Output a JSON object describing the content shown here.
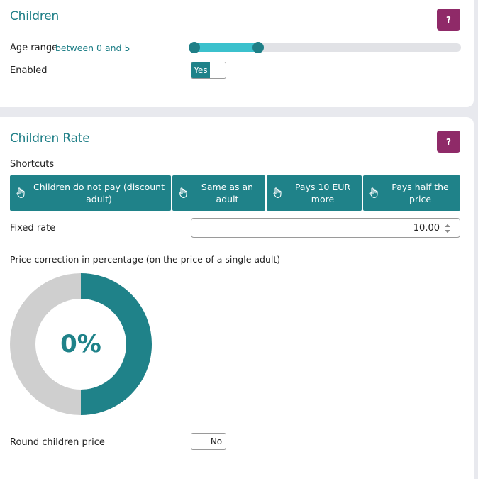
{
  "children": {
    "title": "Children",
    "help_label": "?",
    "age_range_label": "Age range",
    "age_range_text": "between 0 and 5",
    "age_slider": {
      "min_fraction": 0.0,
      "max_fraction": 0.24
    },
    "enabled_label": "Enabled",
    "enabled_toggle": "Yes"
  },
  "rate": {
    "title": "Children Rate",
    "help_label": "?",
    "shortcuts_label": "Shortcuts",
    "shortcuts": [
      {
        "label": "Children do not pay (discount adult)",
        "icon": "pointing-hand-icon"
      },
      {
        "label": "Same as an adult",
        "icon": "pointing-hand-icon"
      },
      {
        "label": "Pays 10 EUR more",
        "icon": "pointing-hand-icon"
      },
      {
        "label": "Pays half the price",
        "icon": "pointing-hand-icon"
      }
    ],
    "fixed_rate_label": "Fixed rate",
    "fixed_rate_value": "10.00",
    "correction_label": "Price correction in percentage (on the price of a single adult)",
    "correction_value_text": "0%",
    "correction_fraction": 0.5,
    "round_label": "Round children price",
    "round_toggle": "No"
  },
  "colors": {
    "accent": "#1f8289",
    "help": "#8f2a68",
    "slider_fill": "#3bc1cd",
    "donut_rest": "#cfcfcf"
  }
}
